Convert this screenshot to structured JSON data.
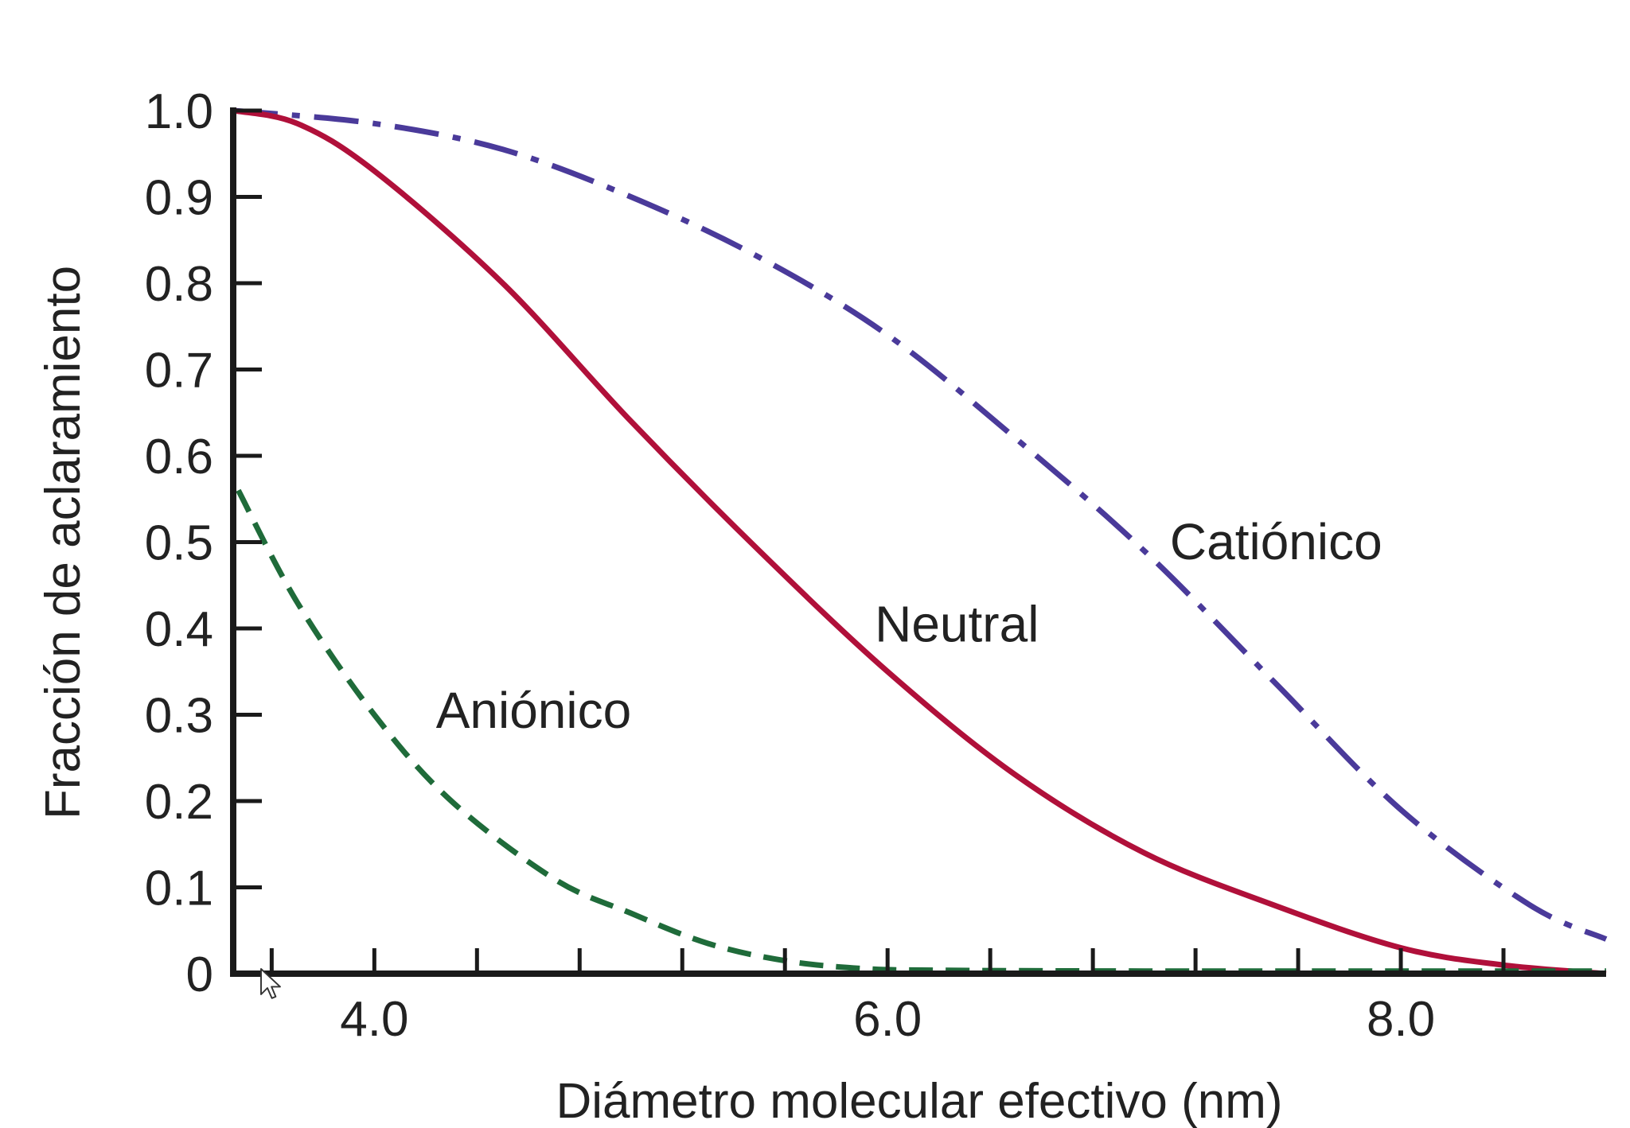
{
  "chart_data": {
    "type": "line",
    "title": "",
    "xlabel": "Diámetro molecular efectivo (nm)",
    "ylabel": "Fracción de aclaramiento",
    "xlim": [
      3.45,
      8.8
    ],
    "ylim": [
      0,
      1.0
    ],
    "x_ticks": [
      4.0,
      6.0,
      8.0
    ],
    "x_tick_labels": [
      "4.0",
      "6.0",
      "8.0"
    ],
    "x_minor_ticks": [
      3.6,
      4.0,
      4.4,
      4.8,
      5.2,
      5.6,
      6.0,
      6.4,
      6.8,
      7.2,
      7.6,
      8.0,
      8.4
    ],
    "y_ticks": [
      0,
      0.1,
      0.2,
      0.3,
      0.4,
      0.5,
      0.6,
      0.7,
      0.8,
      0.9,
      1.0
    ],
    "y_tick_labels": [
      "0",
      "0.1",
      "0.2",
      "0.3",
      "0.4",
      "0.5",
      "0.6",
      "0.7",
      "0.8",
      "0.9",
      "1.0"
    ],
    "grid": false,
    "series": [
      {
        "name": "Catiónico",
        "color": "#4a3a9a",
        "dash": "dash-dot",
        "label_at": [
          7.1,
          0.48
        ],
        "x": [
          3.45,
          4.0,
          4.5,
          5.0,
          5.5,
          6.0,
          6.5,
          7.0,
          7.5,
          8.0,
          8.5,
          8.8
        ],
        "y": [
          1.0,
          0.985,
          0.955,
          0.9,
          0.83,
          0.74,
          0.62,
          0.49,
          0.34,
          0.19,
          0.08,
          0.04
        ]
      },
      {
        "name": "Neutral",
        "color": "#b0103a",
        "dash": "solid",
        "label_at": [
          5.95,
          0.385
        ],
        "x": [
          3.45,
          3.7,
          4.0,
          4.5,
          5.0,
          5.5,
          6.0,
          6.5,
          7.0,
          7.5,
          8.0,
          8.4,
          8.8
        ],
        "y": [
          1.0,
          0.985,
          0.93,
          0.8,
          0.64,
          0.49,
          0.35,
          0.23,
          0.14,
          0.08,
          0.03,
          0.01,
          0.0
        ]
      },
      {
        "name": "Aniónico",
        "color": "#1f6b3a",
        "dash": "dashed",
        "label_at": [
          4.24,
          0.285
        ],
        "x": [
          3.47,
          3.7,
          4.0,
          4.3,
          4.7,
          5.0,
          5.3,
          5.6,
          5.9,
          6.2,
          7.0,
          8.0,
          8.8
        ],
        "y": [
          0.56,
          0.43,
          0.3,
          0.2,
          0.11,
          0.07,
          0.035,
          0.015,
          0.006,
          0.004,
          0.003,
          0.003,
          0.003
        ]
      }
    ]
  }
}
